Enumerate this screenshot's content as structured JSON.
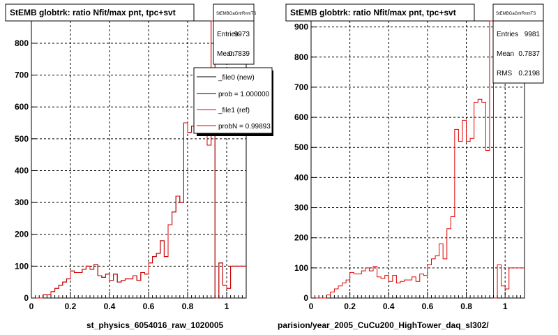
{
  "panels": [
    {
      "title": "StEMB globtrk: ratio Nfit/max pnt, tpc+svt",
      "footer_label": "st_physics_6054016_raw_1020005",
      "stats": {
        "header": "StEMBGaGrtrRnmTS",
        "rows": [
          {
            "label": "Entries",
            "value": "9973"
          },
          {
            "label": "Mean",
            "value": "0.7839"
          }
        ]
      },
      "legend": {
        "entries": [
          {
            "label": "_file0 (new)",
            "color": "#000000"
          },
          {
            "label": "prob = 1.000000",
            "color": "#000000"
          },
          {
            "label": "_file1 (ref)",
            "color": "#e00000"
          },
          {
            "label": "probN = 0.99893",
            "color": "#e00000"
          }
        ]
      }
    },
    {
      "title": "StEMB globtrk: ratio Nfit/max pnt, tpc+svt",
      "footer_label": "parision/year_2005_CuCu200_HighTower_daq_sl302/",
      "stats": {
        "header": "StEMBGaGrtrRnmTS",
        "rows": [
          {
            "label": "Entries",
            "value": "9981"
          },
          {
            "label": "Mean",
            "value": "0.7837"
          },
          {
            "label": "RMS",
            "value": "0.2198"
          }
        ]
      },
      "legend": null
    }
  ],
  "bottom_left_text": "",
  "chart_data": [
    {
      "type": "histogram",
      "title": "StEMB globtrk: ratio Nfit/max pnt, tpc+svt",
      "xlabel": "st_physics_6054016_raw_1020005",
      "ylabel": "",
      "xlim": [
        0,
        1.1
      ],
      "ylim": [
        0,
        870
      ],
      "xticks": [
        "0",
        "0.2",
        "0.4",
        "0.6",
        "0.8",
        "1"
      ],
      "xtick_values": [
        0,
        0.2,
        0.4,
        0.6,
        0.8,
        1.0
      ],
      "yticks": [
        "0",
        "100",
        "200",
        "300",
        "400",
        "500",
        "600",
        "700",
        "800"
      ],
      "ytick_values": [
        0,
        100,
        200,
        300,
        400,
        500,
        600,
        700,
        800
      ],
      "grid": true,
      "bin_width": 0.02,
      "series": [
        {
          "name": "_file0 (new)",
          "color": "#000000",
          "values": [
            0,
            0,
            0,
            10,
            10,
            20,
            30,
            40,
            50,
            60,
            85,
            80,
            80,
            90,
            100,
            90,
            105,
            70,
            65,
            75,
            55,
            75,
            50,
            55,
            60,
            60,
            70,
            55,
            80,
            75,
            110,
            130,
            140,
            180,
            130,
            230,
            270,
            320,
            300,
            550,
            520,
            540,
            600,
            600,
            540,
            480,
            870,
            0,
            110,
            40,
            30,
            100,
            100,
            100,
            100
          ]
        },
        {
          "name": "_file1 (ref)",
          "color": "#e00000",
          "values": [
            0,
            0,
            0,
            10,
            10,
            20,
            30,
            40,
            50,
            60,
            85,
            80,
            80,
            90,
            100,
            90,
            105,
            70,
            65,
            75,
            55,
            75,
            50,
            55,
            60,
            60,
            70,
            55,
            80,
            75,
            110,
            130,
            140,
            180,
            130,
            230,
            270,
            320,
            300,
            550,
            520,
            540,
            600,
            600,
            540,
            480,
            870,
            0,
            110,
            40,
            30,
            100,
            100,
            100,
            100
          ]
        }
      ]
    },
    {
      "type": "histogram",
      "title": "StEMB globtrk: ratio Nfit/max pnt, tpc+svt",
      "xlabel": "parision/year_2005_CuCu200_HighTower_daq_sl302/",
      "ylabel": "",
      "xlim": [
        0,
        1.1
      ],
      "ylim": [
        0,
        920
      ],
      "xticks": [
        "0",
        "0.2",
        "0.4",
        "0.6",
        "0.8",
        "1"
      ],
      "xtick_values": [
        0,
        0.2,
        0.4,
        0.6,
        0.8,
        1.0
      ],
      "yticks": [
        "0",
        "100",
        "200",
        "300",
        "400",
        "500",
        "600",
        "700",
        "800",
        "900"
      ],
      "ytick_values": [
        0,
        100,
        200,
        300,
        400,
        500,
        600,
        700,
        800,
        900
      ],
      "grid": true,
      "bin_width": 0.02,
      "series": [
        {
          "name": "",
          "color": "#e00000",
          "values": [
            0,
            0,
            0,
            0,
            10,
            20,
            30,
            40,
            50,
            60,
            85,
            80,
            80,
            90,
            100,
            90,
            105,
            70,
            65,
            75,
            55,
            75,
            50,
            55,
            60,
            60,
            70,
            55,
            80,
            75,
            110,
            130,
            140,
            180,
            130,
            230,
            270,
            560,
            520,
            590,
            520,
            530,
            650,
            660,
            650,
            490,
            920,
            0,
            110,
            40,
            30,
            100,
            100,
            100,
            100
          ]
        }
      ]
    }
  ]
}
